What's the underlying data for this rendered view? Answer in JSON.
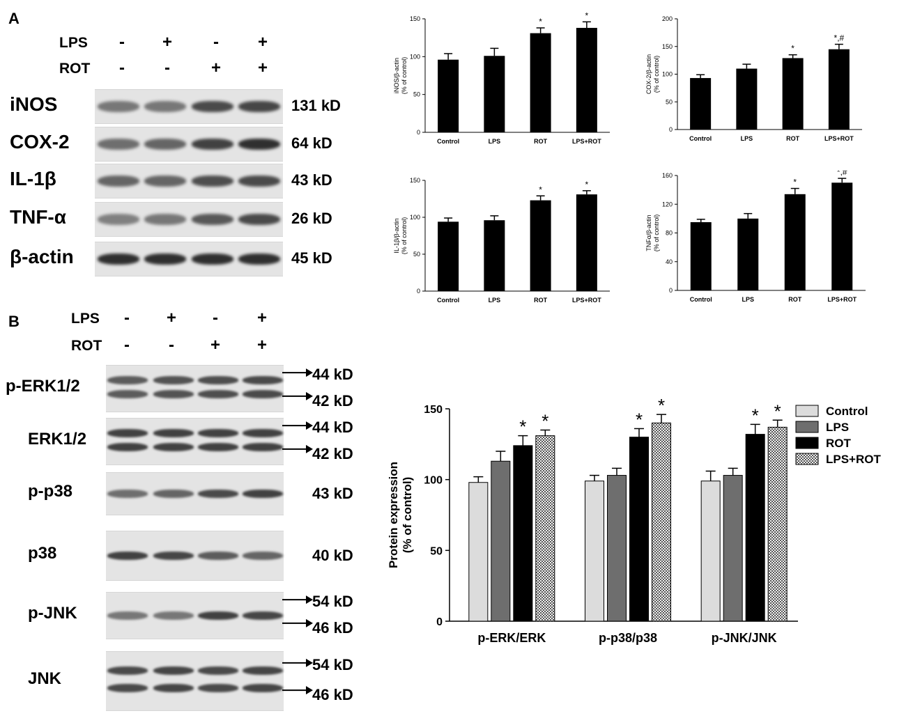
{
  "panel_a": {
    "letter": "A",
    "conditions": [
      {
        "label": "LPS",
        "signs": [
          "-",
          "+",
          "-",
          "+"
        ]
      },
      {
        "label": "ROT",
        "signs": [
          "-",
          "-",
          "+",
          "+"
        ]
      }
    ],
    "blots": [
      {
        "protein": "iNOS",
        "kd": "131 kD",
        "intensity": [
          0.45,
          0.45,
          0.7,
          0.72
        ],
        "double": false
      },
      {
        "protein": "COX-2",
        "kd": "64 kD",
        "intensity": [
          0.5,
          0.55,
          0.75,
          0.85
        ],
        "double": false
      },
      {
        "protein": "IL-1β",
        "kd": "43 kD",
        "intensity": [
          0.55,
          0.55,
          0.68,
          0.7
        ],
        "double": false
      },
      {
        "protein": "TNF-α",
        "kd": "26 kD",
        "intensity": [
          0.4,
          0.45,
          0.62,
          0.7
        ],
        "double": false
      },
      {
        "protein": "β-actin",
        "kd": "45 kD",
        "intensity": [
          0.85,
          0.85,
          0.85,
          0.85
        ],
        "double": false
      }
    ]
  },
  "panel_b": {
    "letter": "B",
    "conditions": [
      {
        "label": "LPS",
        "signs": [
          "-",
          "+",
          "-",
          "+"
        ]
      },
      {
        "label": "ROT",
        "signs": [
          "-",
          "-",
          "+",
          "+"
        ]
      }
    ],
    "blots": [
      {
        "protein": "p-ERK1/2",
        "kds": [
          "44 kD",
          "42 kD"
        ],
        "double": true,
        "arrows": true,
        "intensity": [
          0.6,
          0.65,
          0.68,
          0.7
        ]
      },
      {
        "protein": "ERK1/2",
        "kds": [
          "44 kD",
          "42 kD"
        ],
        "double": true,
        "arrows": true,
        "intensity": [
          0.75,
          0.75,
          0.75,
          0.75
        ]
      },
      {
        "protein": "p-p38",
        "kds": [
          "43 kD"
        ],
        "double": false,
        "arrows": false,
        "intensity": [
          0.5,
          0.55,
          0.7,
          0.75
        ]
      },
      {
        "protein": "p38",
        "kds": [
          "40 kD"
        ],
        "double": false,
        "arrows": false,
        "intensity": [
          0.75,
          0.72,
          0.6,
          0.55
        ]
      },
      {
        "protein": "p-JNK",
        "kds": [
          "54 kD",
          "46 kD"
        ],
        "double": false,
        "arrows": true,
        "intensity": [
          0.45,
          0.45,
          0.75,
          0.72
        ]
      },
      {
        "protein": "JNK",
        "kds": [
          "54 kD",
          "46 kD"
        ],
        "double": true,
        "arrows": true,
        "intensity": [
          0.7,
          0.72,
          0.7,
          0.72
        ]
      }
    ]
  },
  "chart_data": [
    {
      "type": "bar",
      "title": "",
      "ylabel": "iNOS/β-actin\n(% of control)",
      "xlabel": "",
      "categories": [
        "Control",
        "LPS",
        "ROT",
        "LPS+ROT"
      ],
      "values": [
        96,
        101,
        131,
        138
      ],
      "errors": [
        8,
        10,
        7,
        8
      ],
      "annotations": [
        "",
        "",
        "*",
        "*"
      ],
      "ylim": [
        0,
        150
      ],
      "yticks": [
        0,
        50,
        100,
        150
      ]
    },
    {
      "type": "bar",
      "title": "",
      "ylabel": "COX-2/β-actin\n(% of control)",
      "xlabel": "",
      "categories": [
        "Control",
        "LPS",
        "ROT",
        "LPS+ROT"
      ],
      "values": [
        93,
        110,
        129,
        145
      ],
      "errors": [
        6,
        8,
        6,
        9
      ],
      "annotations": [
        "",
        "",
        "*",
        "*,#"
      ],
      "ylim": [
        0,
        200
      ],
      "yticks": [
        0,
        50,
        100,
        150,
        200
      ]
    },
    {
      "type": "bar",
      "title": "",
      "ylabel": "IL-1β/β-actin\n(% of control)",
      "xlabel": "",
      "categories": [
        "Control",
        "LPS",
        "ROT",
        "LPS+ROT"
      ],
      "values": [
        94,
        96,
        123,
        131
      ],
      "errors": [
        5,
        6,
        6,
        5
      ],
      "annotations": [
        "",
        "",
        "*",
        "*"
      ],
      "ylim": [
        0,
        150
      ],
      "yticks": [
        0,
        50,
        100,
        150
      ]
    },
    {
      "type": "bar",
      "title": "",
      "ylabel": "TNFα/β-actin\n(% of control)",
      "xlabel": "",
      "categories": [
        "Control",
        "LPS",
        "ROT",
        "LPS+ROT"
      ],
      "values": [
        95,
        100,
        134,
        150
      ],
      "errors": [
        4,
        7,
        8,
        6
      ],
      "annotations": [
        "",
        "",
        "*",
        "*,#"
      ],
      "ylim": [
        0,
        160
      ],
      "yticks": [
        0,
        40,
        80,
        120,
        160
      ]
    },
    {
      "type": "bar",
      "title": "",
      "ylabel": "Protein expression\n(% of control)",
      "xlabel": "",
      "categories": [
        "p-ERK/ERK",
        "p-p38/p38",
        "p-JNK/JNK"
      ],
      "series": [
        {
          "name": "Control",
          "color": "#dcdcdc",
          "values": [
            98,
            99,
            99
          ],
          "errors": [
            4,
            4,
            7
          ],
          "annotations": [
            "",
            "",
            ""
          ]
        },
        {
          "name": "LPS",
          "color": "#6e6e6e",
          "values": [
            113,
            103,
            103
          ],
          "errors": [
            7,
            5,
            5
          ],
          "annotations": [
            "",
            "",
            ""
          ]
        },
        {
          "name": "ROT",
          "color": "#000000",
          "values": [
            124,
            130,
            132
          ],
          "errors": [
            7,
            6,
            7
          ],
          "annotations": [
            "*",
            "*",
            "*"
          ]
        },
        {
          "name": "LPS+ROT",
          "color": "#d0d0d0",
          "pattern": "checker",
          "values": [
            131,
            140,
            137
          ],
          "errors": [
            4,
            6,
            5
          ],
          "annotations": [
            "*",
            "*",
            "*"
          ]
        }
      ],
      "legend": "top-right",
      "ylim": [
        0,
        150
      ],
      "yticks": [
        0,
        50,
        100,
        150
      ]
    }
  ]
}
